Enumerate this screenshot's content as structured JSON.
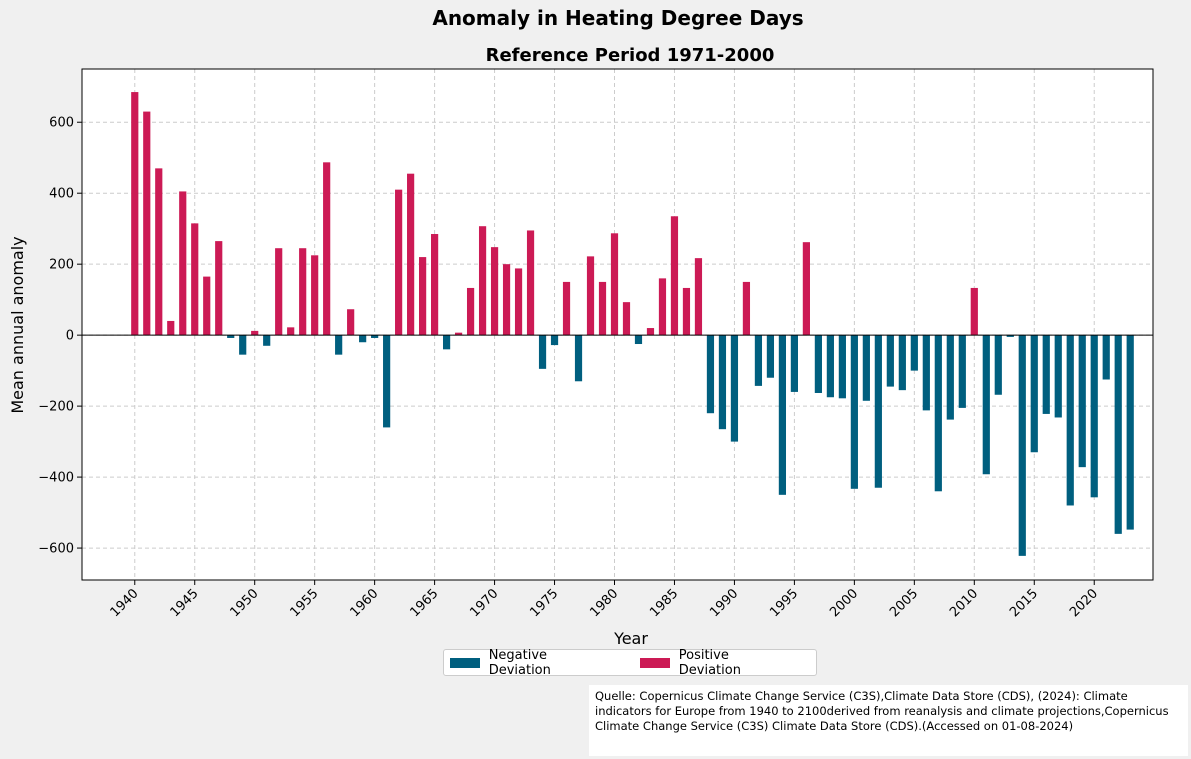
{
  "chart_data": {
    "type": "bar",
    "title": "Anomaly in Heating Degree Days",
    "subtitle": "Reference Period 1971-2000",
    "xlabel": "Year",
    "ylabel": "Mean annual anomaly",
    "ylim": [
      -690,
      750
    ],
    "xlim": [
      1935.6,
      2024.9
    ],
    "xticks": [
      1940,
      1945,
      1950,
      1955,
      1960,
      1965,
      1970,
      1975,
      1980,
      1985,
      1990,
      1995,
      2000,
      2005,
      2010,
      2015,
      2020
    ],
    "yticks": [
      -600,
      -400,
      -200,
      0,
      200,
      400,
      600
    ],
    "ytick_labels": [
      "−600",
      "−400",
      "−200",
      "0",
      "200",
      "400",
      "600"
    ],
    "grid": true,
    "legend_position": "bottom-center",
    "colors": {
      "positive": "#cc1a55",
      "negative": "#005f7f"
    },
    "series": [
      {
        "name": "Negative Deviation",
        "color": "#005f7f"
      },
      {
        "name": "Positive Deviation",
        "color": "#cc1a55"
      }
    ],
    "x": [
      1940,
      1941,
      1942,
      1943,
      1944,
      1945,
      1946,
      1947,
      1948,
      1949,
      1950,
      1951,
      1952,
      1953,
      1954,
      1955,
      1956,
      1957,
      1958,
      1959,
      1960,
      1961,
      1962,
      1963,
      1964,
      1965,
      1966,
      1967,
      1968,
      1969,
      1970,
      1971,
      1972,
      1973,
      1974,
      1975,
      1976,
      1977,
      1978,
      1979,
      1980,
      1981,
      1982,
      1983,
      1984,
      1985,
      1986,
      1987,
      1988,
      1989,
      1990,
      1991,
      1992,
      1993,
      1994,
      1995,
      1996,
      1997,
      1998,
      1999,
      2000,
      2001,
      2002,
      2003,
      2004,
      2005,
      2006,
      2007,
      2008,
      2009,
      2010,
      2011,
      2012,
      2013,
      2014,
      2015,
      2016,
      2017,
      2018,
      2019,
      2020,
      2021,
      2022,
      2023
    ],
    "values": [
      685,
      630,
      470,
      40,
      405,
      315,
      165,
      265,
      -8,
      -55,
      12,
      -30,
      245,
      22,
      245,
      225,
      487,
      -55,
      73,
      -20,
      -8,
      -260,
      410,
      455,
      220,
      285,
      -40,
      7,
      133,
      307,
      248,
      200,
      188,
      295,
      -95,
      -28,
      150,
      -130,
      222,
      150,
      287,
      93,
      -25,
      20,
      160,
      335,
      133,
      217,
      -220,
      -265,
      -300,
      150,
      -143,
      -120,
      -450,
      -160,
      262,
      -163,
      -175,
      -178,
      -433,
      -185,
      -430,
      -145,
      -155,
      -100,
      -212,
      -440,
      -238,
      -205,
      133,
      -392,
      -168,
      -5,
      -622,
      -330,
      -222,
      -232,
      -480,
      -372,
      -457,
      -125,
      -560,
      -548
    ]
  },
  "source_note": "Quelle: Copernicus Climate Change Service (C3S),Climate Data Store (CDS), (2024): Climate indicators for Europe from 1940 to 2100derived from reanalysis and climate projections,Copernicus Climate Change Service (C3S) Climate Data Store (CDS).(Accessed on 01-08-2024)"
}
